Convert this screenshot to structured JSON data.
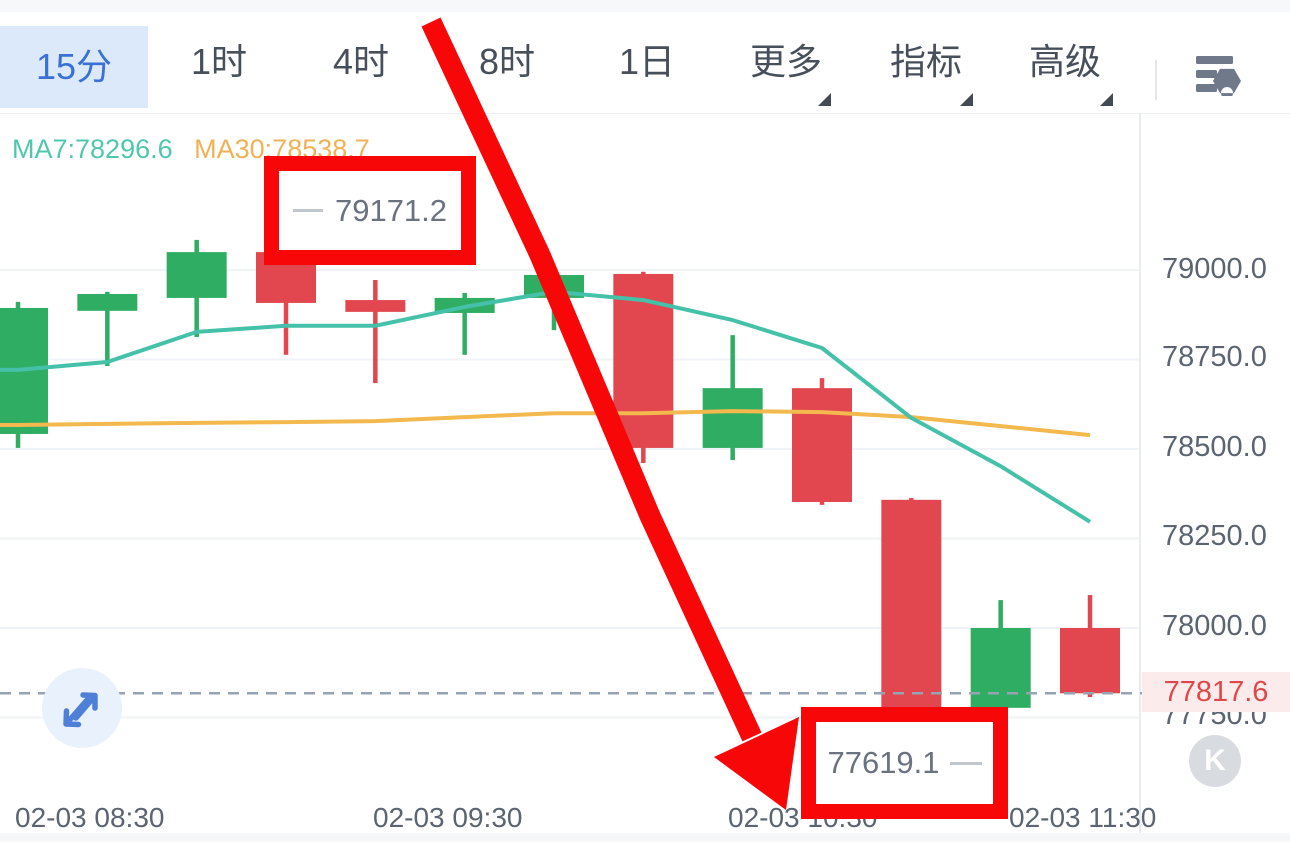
{
  "header": {
    "tabs": [
      {
        "label": "15分",
        "active": true
      },
      {
        "label": "1时"
      },
      {
        "label": "4时"
      },
      {
        "label": "8时"
      },
      {
        "label": "1日"
      },
      {
        "label": "更多",
        "dropdown": true
      },
      {
        "label": "指标",
        "dropdown": true
      },
      {
        "label": "高级",
        "dropdown": true
      }
    ],
    "settings_icon": "list-settings-icon"
  },
  "chart_data": {
    "type": "candlestick",
    "interval": "15分",
    "legend": {
      "ma7_label": "MA7:78296.6",
      "ma30_label": "MA30:78538.7"
    },
    "y_ticks": [
      {
        "label": "79000.0",
        "value": 79000
      },
      {
        "label": "78750.0",
        "value": 78750
      },
      {
        "label": "78500.0",
        "value": 78500
      },
      {
        "label": "78250.0",
        "value": 78250
      },
      {
        "label": "78000.0",
        "value": 78000
      },
      {
        "label": "77750.0",
        "value": 77750
      }
    ],
    "x_ticks": [
      "02-03 08:30",
      "02-03 09:30",
      "02-03 10:30",
      "02-03 11:30"
    ],
    "ylim": [
      77430,
      79440
    ],
    "candles": [
      {
        "time": "02-03 08:30",
        "open": 78542,
        "high": 78911,
        "low": 78503,
        "close": 78894
      },
      {
        "time": "02-03 08:45",
        "open": 78886,
        "high": 78939,
        "low": 78732,
        "close": 78933
      },
      {
        "time": "02-03 09:00",
        "open": 78922,
        "high": 79084,
        "low": 78813,
        "close": 79050
      },
      {
        "time": "02-03 09:15",
        "open": 79050,
        "high": 79171.2,
        "low": 78763,
        "close": 78908
      },
      {
        "time": "02-03 09:30",
        "open": 78916,
        "high": 78972,
        "low": 78684,
        "close": 78883
      },
      {
        "time": "02-03 09:45",
        "open": 78880,
        "high": 78936,
        "low": 78763,
        "close": 78922
      },
      {
        "time": "02-03 10:00",
        "open": 78922,
        "high": 79006,
        "low": 78832,
        "close": 78986
      },
      {
        "time": "02-03 10:15",
        "open": 78989,
        "high": 78995,
        "low": 78461,
        "close": 78503
      },
      {
        "time": "02-03 10:30",
        "open": 78503,
        "high": 78818,
        "low": 78469,
        "close": 78670
      },
      {
        "time": "02-03 10:45",
        "open": 78670,
        "high": 78698,
        "low": 78344,
        "close": 78352
      },
      {
        "time": "02-03 11:00",
        "open": 78358,
        "high": 78363,
        "low": 77619.1,
        "close": 77777
      },
      {
        "time": "02-03 11:15",
        "open": 77777,
        "high": 78078,
        "low": 77765,
        "close": 78000
      },
      {
        "time": "02-03 11:30",
        "open": 78000,
        "high": 78092,
        "low": 77807,
        "close": 77817.6
      }
    ],
    "ma7": [
      78721,
      78743,
      78827,
      78844,
      78844,
      78897,
      78939,
      78916,
      78860,
      78782,
      78587,
      78452,
      78296.6
    ],
    "ma30": [
      78567,
      78570,
      78573,
      78575,
      78578,
      78589,
      78600,
      78600,
      78606,
      78603,
      78589,
      78564,
      78538.7
    ],
    "last_price": 77817.6,
    "high_marker": "79171.2",
    "low_marker": "77619.1",
    "colors": {
      "up": "#2fae63",
      "down": "#e2474f",
      "ma7": "#45c1a9",
      "ma30": "#f3b84e",
      "grid": "#f0f3f7",
      "boundary": "#e8ecf0",
      "last_price_line": "#97a2b2"
    }
  },
  "price_tag": {
    "label": "77817.6"
  },
  "footer": {
    "k_label": "K"
  }
}
